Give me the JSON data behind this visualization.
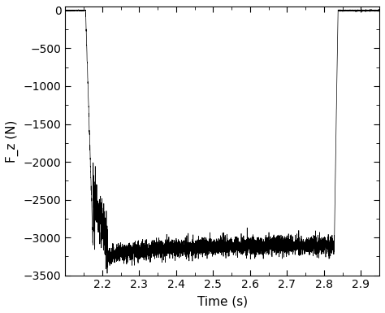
{
  "title": "",
  "xlabel": "Time (s)",
  "ylabel": "F_z (N)",
  "xlim": [
    2.1,
    2.95
  ],
  "ylim": [
    -3500,
    50
  ],
  "xticks": [
    2.2,
    2.3,
    2.4,
    2.5,
    2.6,
    2.7,
    2.8,
    2.9
  ],
  "yticks": [
    0,
    -500,
    -1000,
    -1500,
    -2000,
    -2500,
    -3000,
    -3500
  ],
  "line_color": "#000000",
  "background_color": "#ffffff",
  "noise_seed": 42,
  "t_start": 2.1,
  "t_end": 2.95,
  "drop_start": 2.155,
  "drop_end": 2.175,
  "plateau_value": -3100,
  "plateau_noise_std": 60,
  "rise_start": 2.828,
  "rise_end": 2.838,
  "n_points": 5000,
  "figsize": [
    4.74,
    3.85
  ],
  "dpi": 100
}
